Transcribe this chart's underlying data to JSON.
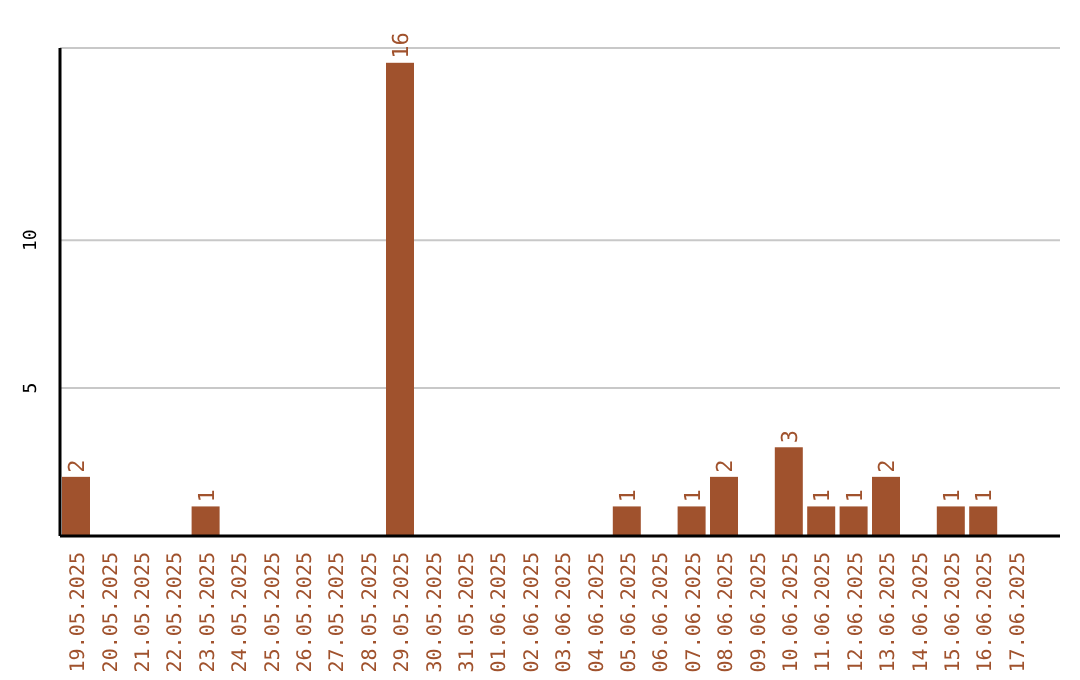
{
  "chart_data": {
    "type": "bar",
    "categories": [
      "19.05.2025",
      "20.05.2025",
      "21.05.2025",
      "22.05.2025",
      "23.05.2025",
      "24.05.2025",
      "25.05.2025",
      "26.05.2025",
      "27.05.2025",
      "28.05.2025",
      "29.05.2025",
      "30.05.2025",
      "31.05.2025",
      "01.06.2025",
      "02.06.2025",
      "03.06.2025",
      "04.06.2025",
      "05.06.2025",
      "06.06.2025",
      "07.06.2025",
      "08.06.2025",
      "09.06.2025",
      "10.06.2025",
      "11.06.2025",
      "12.06.2025",
      "13.06.2025",
      "14.06.2025",
      "15.06.2025",
      "16.06.2025",
      "17.06.2025"
    ],
    "values": [
      2,
      0,
      0,
      0,
      1,
      0,
      0,
      0,
      0,
      0,
      16,
      0,
      0,
      0,
      0,
      0,
      0,
      1,
      0,
      1,
      2,
      0,
      3,
      1,
      1,
      2,
      0,
      1,
      1,
      0
    ],
    "value_labels": [
      "2",
      null,
      null,
      null,
      "1",
      null,
      null,
      null,
      null,
      null,
      "16",
      null,
      null,
      null,
      null,
      null,
      null,
      "1",
      null,
      "1",
      "2",
      null,
      "3",
      "1",
      "1",
      "2",
      null,
      "1",
      "1",
      null
    ],
    "color": "#a0522d",
    "ylim": [
      0,
      16.5
    ],
    "yticks": [
      5,
      10
    ],
    "grid": "y"
  }
}
